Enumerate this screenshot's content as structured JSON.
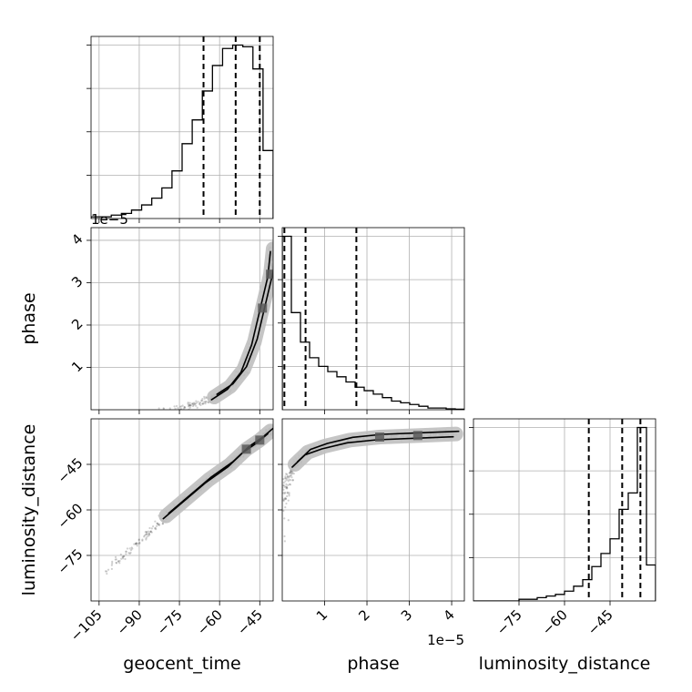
{
  "chart_data": {
    "type": "corner",
    "parameters": [
      "geocent_time",
      "phase",
      "luminosity_distance"
    ],
    "axis_labels": {
      "x": [
        "geocent_time",
        "phase",
        "luminosity_distance"
      ],
      "y": [
        "",
        "phase",
        "luminosity_distance"
      ]
    },
    "offset_labels": {
      "phase_y": "1e−5",
      "phase_x": "1e−5"
    },
    "ranges": {
      "geocent_time": [
        -108,
        -40
      ],
      "phase": [
        0,
        4.3
      ],
      "luminosity_distance": [
        -90,
        -30
      ]
    },
    "ticks": {
      "geocent_time": {
        "values": [
          -105,
          -90,
          -75,
          -60,
          -45
        ],
        "labels": [
          "−105",
          "−90",
          "−75",
          "−60",
          "−45"
        ]
      },
      "phase_y": {
        "values": [
          1,
          2,
          3,
          4
        ],
        "labels": [
          "1",
          "2",
          "3",
          "4"
        ]
      },
      "phase_x": {
        "values": [
          1,
          2,
          3,
          4
        ],
        "labels": [
          "1",
          "2",
          "3",
          "4"
        ]
      },
      "luminosity_distance": {
        "values": [
          -75,
          -60,
          -45
        ],
        "labels": [
          "−75",
          "−60",
          "−45"
        ]
      }
    },
    "histograms": [
      {
        "parameter": "geocent_time",
        "bins": [
          -108,
          -40
        ],
        "counts": [
          1,
          1,
          2,
          3,
          5,
          8,
          12,
          18,
          28,
          44,
          58,
          75,
          90,
          100,
          102,
          101,
          88,
          40
        ],
        "quantiles": [
          -66,
          -54,
          -45
        ]
      },
      {
        "parameter": "phase",
        "bins": [
          0,
          4.3
        ],
        "counts": [
          100,
          56,
          39,
          30,
          25,
          22,
          19,
          16,
          13,
          11,
          9,
          7,
          5,
          4,
          3,
          2,
          1,
          1,
          0.5,
          0.3
        ],
        "quantiles": [
          0.05,
          0.55,
          1.75
        ]
      },
      {
        "parameter": "luminosity_distance",
        "bins": [
          -90,
          -30
        ],
        "counts": [
          0,
          0,
          0,
          0,
          0,
          1,
          1,
          2,
          3,
          4,
          6,
          9,
          13,
          21,
          29,
          38,
          56,
          66,
          106,
          22
        ],
        "quantiles": [
          -52,
          -41,
          -35
        ]
      }
    ],
    "pairs": [
      {
        "x": "geocent_time",
        "y": "phase",
        "scatter_trend": [
          [
            -85,
            0.02
          ],
          [
            -75,
            0.05
          ],
          [
            -68,
            0.15
          ],
          [
            -62,
            0.3
          ],
          [
            -56,
            0.55
          ],
          [
            -51,
            0.95
          ],
          [
            -47,
            1.6
          ],
          [
            -44,
            2.4
          ],
          [
            -41,
            3.2
          ],
          [
            -40,
            3.8
          ]
        ]
      },
      {
        "x": "geocent_time",
        "y": "luminosity_distance",
        "scatter_trend": [
          [
            -105,
            -82
          ],
          [
            -97,
            -76
          ],
          [
            -88,
            -69
          ],
          [
            -80,
            -62
          ],
          [
            -72,
            -56
          ],
          [
            -64,
            -50
          ],
          [
            -56,
            -45
          ],
          [
            -50,
            -40
          ],
          [
            -45,
            -37
          ],
          [
            -41,
            -34
          ]
        ]
      },
      {
        "x": "phase",
        "y": "luminosity_distance",
        "scatter_trend": [
          [
            0.02,
            -75
          ],
          [
            0.05,
            -58
          ],
          [
            0.12,
            -50
          ],
          [
            0.3,
            -45
          ],
          [
            0.6,
            -41
          ],
          [
            1.0,
            -39
          ],
          [
            1.6,
            -37
          ],
          [
            2.3,
            -36
          ],
          [
            3.2,
            -35.5
          ],
          [
            4.1,
            -35
          ]
        ]
      }
    ],
    "grid": true,
    "colors": {
      "line": "#000000",
      "grid": "#b0b0b0",
      "scatter": "#555555",
      "contour_fill": "#bfbfbf",
      "contour_dark": "#5a5a5a"
    }
  }
}
